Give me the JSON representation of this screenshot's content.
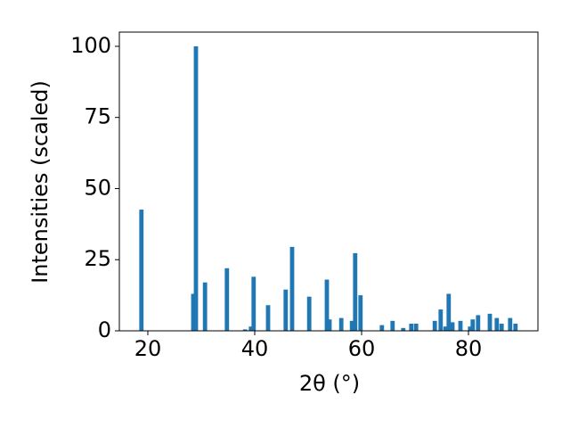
{
  "chart_data": {
    "type": "bar",
    "x_label": "2θ (°)",
    "y_label": "Intensities (scaled)",
    "x": [
      18.8,
      28.5,
      29.0,
      30.7,
      34.8,
      38.2,
      39.3,
      39.8,
      42.5,
      45.8,
      47.0,
      50.2,
      53.5,
      54.0,
      56.2,
      58.2,
      58.8,
      59.8,
      63.8,
      65.8,
      67.8,
      69.3,
      70.2,
      73.7,
      74.8,
      75.7,
      76.3,
      77.0,
      78.5,
      80.3,
      80.8,
      81.8,
      84.0,
      85.3,
      86.2,
      87.8,
      88.8
    ],
    "values": [
      42.6,
      13,
      100,
      17,
      22,
      0.5,
      1.5,
      19,
      9,
      14.5,
      29.5,
      12,
      18,
      4,
      4.5,
      3.5,
      27.3,
      12.5,
      2,
      3.5,
      1,
      2.5,
      2.5,
      3.5,
      7.5,
      1.5,
      13,
      3,
      3.5,
      1.5,
      4,
      5.5,
      6,
      4.5,
      2.5,
      4.5,
      2.5
    ],
    "color": "#1f77b4",
    "xlim": [
      14.67,
      93
    ],
    "xticks": [
      20,
      40,
      60,
      80
    ],
    "ylim": [
      0,
      105
    ],
    "yticks": [
      0,
      25,
      50,
      75,
      100
    ]
  }
}
